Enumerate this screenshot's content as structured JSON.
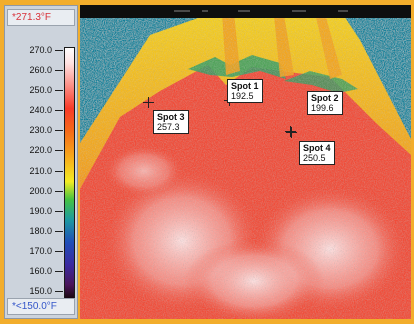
{
  "scale": {
    "max_label": "*271.3°F",
    "min_label": "*<150.0°F",
    "ticks": [
      "270.0",
      "260.0",
      "250.0",
      "240.0",
      "230.0",
      "220.0",
      "210.0",
      "200.0",
      "190.0",
      "180.0",
      "170.0",
      "160.0",
      "150.0"
    ]
  },
  "spots": [
    {
      "name": "Spot 1",
      "value": "192.5"
    },
    {
      "name": "Spot 2",
      "value": "199.6"
    },
    {
      "name": "Spot 3",
      "value": "257.3"
    },
    {
      "name": "Spot 4",
      "value": "250.5"
    }
  ],
  "colors": {
    "frame": "#f2ad2c",
    "panel": "#ccd3dc",
    "hot": "#f24a36",
    "warm": "#f5d11c",
    "cool": "#11809a",
    "max_text": "#d8323a",
    "min_text": "#3456c9"
  }
}
